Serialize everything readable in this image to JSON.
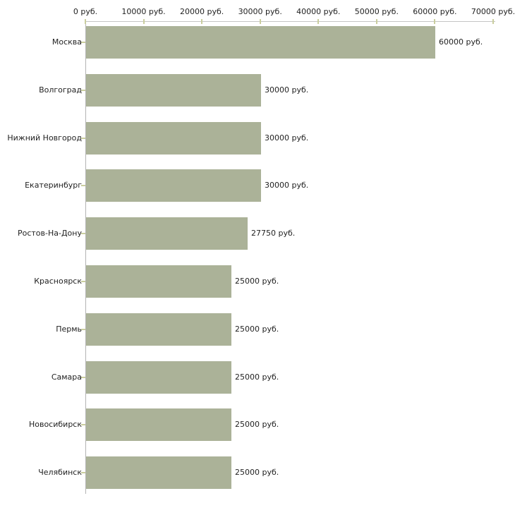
{
  "chart_data": {
    "type": "bar",
    "orientation": "horizontal",
    "title": "",
    "xlabel": "",
    "ylabel": "",
    "grid": false,
    "legend": false,
    "categories": [
      "Москва",
      "Волгоград",
      "Нижний Новгород",
      "Екатеринбург",
      "Ростов-На-Дону",
      "Красноярск",
      "Пермь",
      "Самара",
      "Новосибирск",
      "Челябинск"
    ],
    "values": [
      60000,
      30000,
      30000,
      30000,
      27750,
      25000,
      25000,
      25000,
      25000,
      25000
    ],
    "value_labels": [
      "60000 руб.",
      "30000 руб.",
      "30000 руб.",
      "30000 руб.",
      "27750 руб.",
      "25000 руб.",
      "25000 руб.",
      "25000 руб.",
      "25000 руб.",
      "25000 руб."
    ],
    "x_axis": {
      "position": "top",
      "min": 0,
      "max": 70000,
      "ticks": [
        0,
        10000,
        20000,
        30000,
        40000,
        50000,
        60000,
        70000
      ],
      "tick_labels": [
        "0 руб.",
        "10000 руб.",
        "20000 руб.",
        "30000 руб.",
        "40000 руб.",
        "50000 руб.",
        "60000 руб.",
        "70000 руб."
      ]
    },
    "colors": {
      "bar": "#abb298",
      "axis_line_h": "#c4c4c4",
      "axis_line_v": "#b4b4b4",
      "tick_mark": "#cace9e",
      "text": "#1f1f1f",
      "background": "#ffffff"
    }
  }
}
